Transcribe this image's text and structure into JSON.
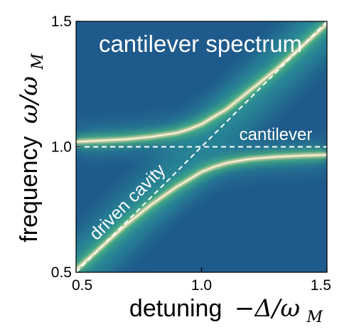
{
  "chart_data": {
    "type": "heatmap",
    "title": "cantilever spectrum",
    "xlabel": {
      "text": "detuning",
      "math": "−Δ/ω",
      "sub": "M"
    },
    "ylabel": {
      "text": "frequency",
      "math": "ω/ω",
      "sub": "M"
    },
    "xlim": [
      0.5,
      1.5
    ],
    "ylim": [
      0.5,
      1.5
    ],
    "xticks": [
      {
        "value": 0.5,
        "label": "0.5"
      },
      {
        "value": 1.0,
        "label": "1.0"
      },
      {
        "value": 1.5,
        "label": "1.5"
      }
    ],
    "yticks": [
      {
        "value": 0.5,
        "label": "0.5"
      },
      {
        "value": 1.0,
        "label": "1.0"
      },
      {
        "value": 1.5,
        "label": "1.5"
      }
    ],
    "reference_lines": [
      {
        "label": "cantilever",
        "kind": "horizontal",
        "y": 1.0
      },
      {
        "label": "driven cavity",
        "kind": "diagonal",
        "from": [
          0.5,
          0.5
        ],
        "to": [
          1.5,
          1.5
        ]
      }
    ],
    "branches": [
      {
        "x": [
          0.5,
          0.6,
          0.7,
          0.8,
          0.9,
          0.95,
          1.0,
          1.05,
          1.1,
          1.15,
          1.2,
          1.3,
          1.4,
          1.5
        ],
        "y": [
          1.02,
          1.025,
          1.03,
          1.04,
          1.055,
          1.07,
          1.09,
          1.12,
          1.15,
          1.19,
          1.23,
          1.31,
          1.4,
          1.49
        ]
      },
      {
        "x": [
          0.5,
          0.6,
          0.7,
          0.8,
          0.9,
          0.95,
          1.0,
          1.05,
          1.1,
          1.15,
          1.2,
          1.3,
          1.4,
          1.5
        ],
        "y": [
          0.51,
          0.6,
          0.69,
          0.77,
          0.84,
          0.87,
          0.9,
          0.92,
          0.935,
          0.945,
          0.952,
          0.96,
          0.965,
          0.968
        ]
      }
    ],
    "colors": {
      "background": "#1f5a8c",
      "mid": "#2f9a9a",
      "green": "#4fb87a",
      "peak": "#f3d9a8",
      "core": "#ffffff"
    }
  }
}
